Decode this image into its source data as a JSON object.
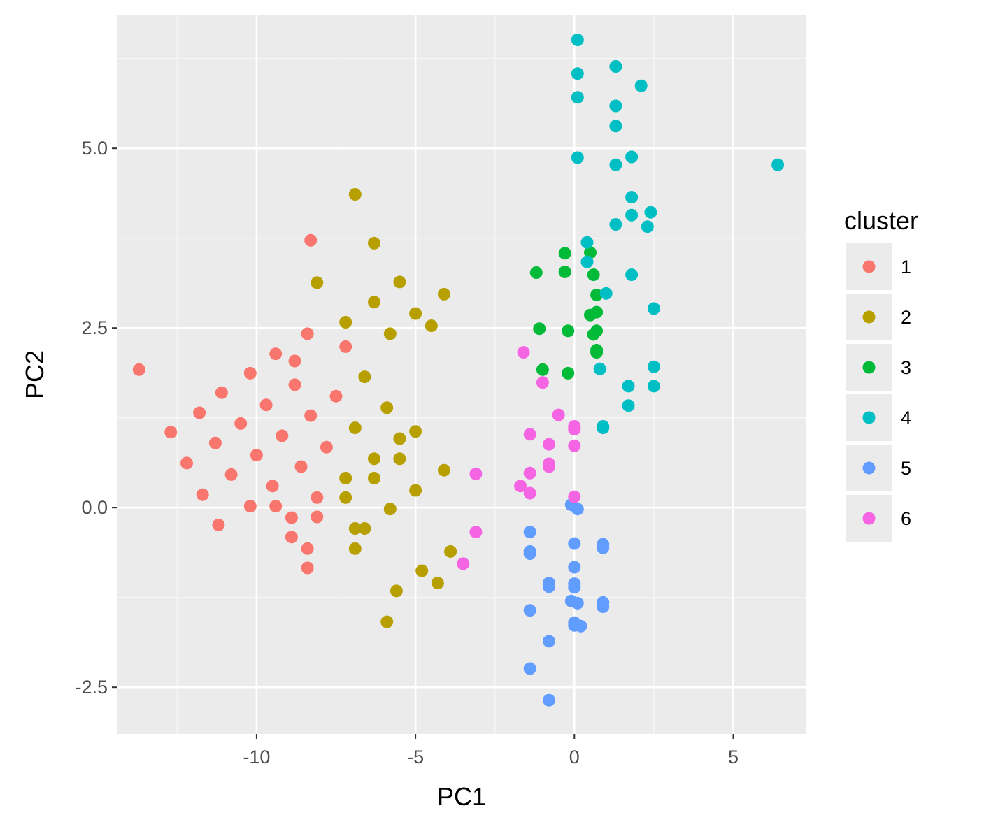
{
  "chart_data": {
    "type": "scatter",
    "title": "",
    "xlabel": "PC1",
    "ylabel": "PC2",
    "xlim": [
      -14.4,
      7.3
    ],
    "ylim": [
      -3.15,
      6.85
    ],
    "x_ticks": [
      -10,
      -5,
      0,
      5
    ],
    "x_tick_labels": [
      "-10",
      "-5",
      "0",
      "5"
    ],
    "y_ticks": [
      -2.5,
      0.0,
      2.5,
      5.0
    ],
    "y_tick_labels": [
      "-2.5",
      "0.0",
      "2.5",
      "5.0"
    ],
    "grid": true,
    "legend": {
      "title": "cluster",
      "position": "right"
    },
    "series": [
      {
        "name": "1",
        "color": "#F8766D",
        "points": [
          [
            -13.7,
            1.92
          ],
          [
            -12.7,
            1.05
          ],
          [
            -12.2,
            0.62
          ],
          [
            -11.8,
            1.32
          ],
          [
            -11.7,
            0.18
          ],
          [
            -11.3,
            0.9
          ],
          [
            -11.2,
            -0.24
          ],
          [
            -11.1,
            1.6
          ],
          [
            -10.8,
            0.46
          ],
          [
            -10.5,
            1.17
          ],
          [
            -10.2,
            0.02
          ],
          [
            -10.2,
            1.87
          ],
          [
            -10.0,
            0.73
          ],
          [
            -9.7,
            1.43
          ],
          [
            -9.5,
            0.3
          ],
          [
            -9.4,
            2.14
          ],
          [
            -9.4,
            0.02
          ],
          [
            -9.2,
            1.0
          ],
          [
            -8.9,
            -0.14
          ],
          [
            -8.8,
            2.04
          ],
          [
            -8.9,
            -0.41
          ],
          [
            -8.8,
            1.71
          ],
          [
            -8.6,
            0.57
          ],
          [
            -8.4,
            2.42
          ],
          [
            -8.4,
            -0.57
          ],
          [
            -8.4,
            -0.84
          ],
          [
            -8.3,
            3.72
          ],
          [
            -8.3,
            1.28
          ],
          [
            -8.1,
            0.14
          ],
          [
            -8.1,
            -0.13
          ],
          [
            -7.8,
            0.84
          ],
          [
            -7.5,
            1.55
          ],
          [
            -7.2,
            2.24
          ]
        ]
      },
      {
        "name": "2",
        "color": "#B79F00",
        "points": [
          [
            -6.9,
            4.36
          ],
          [
            -8.1,
            3.13
          ],
          [
            -7.2,
            2.58
          ],
          [
            -7.2,
            0.14
          ],
          [
            -7.2,
            0.41
          ],
          [
            -6.9,
            1.11
          ],
          [
            -6.9,
            -0.29
          ],
          [
            -6.9,
            -0.57
          ],
          [
            -6.6,
            1.82
          ],
          [
            -6.6,
            -0.29
          ],
          [
            -6.3,
            3.68
          ],
          [
            -6.3,
            2.86
          ],
          [
            -6.3,
            0.68
          ],
          [
            -6.3,
            0.41
          ],
          [
            -5.9,
            1.39
          ],
          [
            -5.8,
            2.42
          ],
          [
            -5.8,
            -0.02
          ],
          [
            -5.9,
            -1.59
          ],
          [
            -5.6,
            -1.16
          ],
          [
            -5.5,
            3.14
          ],
          [
            -5.5,
            0.96
          ],
          [
            -5.5,
            0.68
          ],
          [
            -5.0,
            2.7
          ],
          [
            -5.0,
            1.06
          ],
          [
            -5.0,
            0.24
          ],
          [
            -4.8,
            -0.88
          ],
          [
            -4.5,
            2.53
          ],
          [
            -4.3,
            -1.05
          ],
          [
            -4.1,
            2.97
          ],
          [
            -4.1,
            0.52
          ],
          [
            -3.9,
            -0.61
          ]
        ]
      },
      {
        "name": "3",
        "color": "#00BA38",
        "points": [
          [
            -1.2,
            3.27
          ],
          [
            -1.1,
            2.49
          ],
          [
            -1.0,
            1.92
          ],
          [
            -0.3,
            3.54
          ],
          [
            -0.3,
            3.28
          ],
          [
            -0.2,
            2.46
          ],
          [
            -0.2,
            1.87
          ],
          [
            0.5,
            3.55
          ],
          [
            0.6,
            3.24
          ],
          [
            0.7,
            2.96
          ],
          [
            0.7,
            2.72
          ],
          [
            0.5,
            2.68
          ],
          [
            0.6,
            2.41
          ],
          [
            0.7,
            2.46
          ],
          [
            0.7,
            2.19
          ],
          [
            0.7,
            2.16
          ]
        ]
      },
      {
        "name": "4",
        "color": "#00BFC4",
        "points": [
          [
            0.1,
            6.51
          ],
          [
            0.1,
            6.04
          ],
          [
            0.1,
            5.71
          ],
          [
            0.1,
            4.87
          ],
          [
            1.3,
            6.14
          ],
          [
            1.3,
            5.59
          ],
          [
            1.3,
            5.31
          ],
          [
            1.3,
            4.77
          ],
          [
            2.1,
            5.87
          ],
          [
            1.8,
            4.88
          ],
          [
            1.8,
            4.32
          ],
          [
            1.8,
            4.07
          ],
          [
            2.4,
            4.11
          ],
          [
            2.3,
            3.91
          ],
          [
            1.3,
            3.94
          ],
          [
            0.4,
            3.69
          ],
          [
            0.4,
            3.42
          ],
          [
            1.8,
            3.24
          ],
          [
            1.0,
            2.98
          ],
          [
            2.5,
            2.77
          ],
          [
            0.8,
            1.93
          ],
          [
            2.5,
            1.96
          ],
          [
            1.7,
            1.69
          ],
          [
            2.5,
            1.69
          ],
          [
            1.7,
            1.42
          ],
          [
            0.9,
            1.13
          ],
          [
            0.9,
            1.11
          ],
          [
            6.4,
            4.77
          ]
        ]
      },
      {
        "name": "5",
        "color": "#619CFF",
        "points": [
          [
            -0.1,
            0.04
          ],
          [
            0.1,
            -0.02
          ],
          [
            -1.4,
            -0.34
          ],
          [
            -1.4,
            -0.61
          ],
          [
            -1.4,
            -0.64
          ],
          [
            0.0,
            -0.5
          ],
          [
            0.0,
            -0.83
          ],
          [
            0.9,
            -0.51
          ],
          [
            0.9,
            -0.56
          ],
          [
            -0.8,
            -1.05
          ],
          [
            -0.8,
            -1.1
          ],
          [
            0.0,
            -1.06
          ],
          [
            0.0,
            -1.11
          ],
          [
            -0.1,
            -1.3
          ],
          [
            0.1,
            -1.33
          ],
          [
            0.9,
            -1.32
          ],
          [
            0.9,
            -1.38
          ],
          [
            -1.4,
            -1.43
          ],
          [
            0.0,
            -1.6
          ],
          [
            0.0,
            -1.64
          ],
          [
            0.2,
            -1.65
          ],
          [
            -0.8,
            -1.86
          ],
          [
            -1.4,
            -2.24
          ],
          [
            -0.8,
            -2.68
          ]
        ]
      },
      {
        "name": "6",
        "color": "#F564E3",
        "points": [
          [
            -1.6,
            2.16
          ],
          [
            -1.0,
            1.74
          ],
          [
            -0.5,
            1.29
          ],
          [
            0.0,
            1.13
          ],
          [
            0.0,
            1.09
          ],
          [
            -1.4,
            1.02
          ],
          [
            -0.8,
            0.88
          ],
          [
            0.0,
            0.86
          ],
          [
            -0.8,
            0.61
          ],
          [
            -0.8,
            0.57
          ],
          [
            -1.4,
            0.48
          ],
          [
            -3.1,
            0.47
          ],
          [
            -1.7,
            0.3
          ],
          [
            -1.4,
            0.2
          ],
          [
            0.0,
            0.15
          ],
          [
            -3.1,
            -0.34
          ],
          [
            -3.5,
            -0.78
          ]
        ]
      }
    ]
  }
}
